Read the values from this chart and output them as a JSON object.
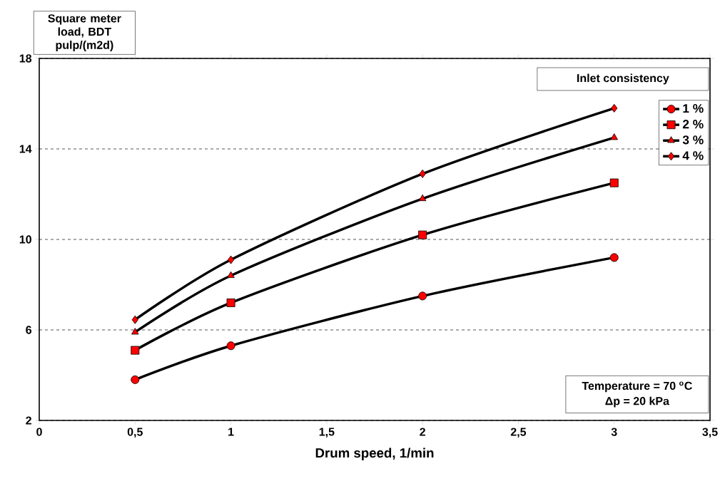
{
  "chart_data": {
    "type": "line",
    "xlabel": "Drum speed, 1/min",
    "ylabel": "Square meter load, BDT pulp/(m2d)",
    "legend_title": "Inlet consistency",
    "x": [
      0.5,
      1,
      2,
      3
    ],
    "series": [
      {
        "name": "1 %",
        "color": "#000000",
        "marker": "circle",
        "values": [
          3.8,
          5.3,
          7.5,
          9.2
        ]
      },
      {
        "name": "2 %",
        "color": "#000000",
        "marker": "square",
        "values": [
          5.1,
          7.2,
          10.2,
          12.5
        ]
      },
      {
        "name": "3 %",
        "color": "#000000",
        "marker": "triangle",
        "values": [
          5.9,
          8.4,
          11.8,
          14.5
        ]
      },
      {
        "name": "4 %",
        "color": "#000000",
        "marker": "diamond",
        "values": [
          6.45,
          9.1,
          12.9,
          15.8
        ]
      }
    ],
    "xlim": [
      0,
      3.5
    ],
    "ylim": [
      2,
      18
    ],
    "xticks": [
      0,
      {
        "value": 0.5,
        "label": "0,5"
      },
      1,
      {
        "value": 1.5,
        "label": "1,5"
      },
      2,
      {
        "value": 2.5,
        "label": "2,5"
      },
      3,
      {
        "value": 3.5,
        "label": "3,5"
      }
    ],
    "yticks": [
      2,
      6,
      10,
      14,
      18
    ],
    "annotations": [
      "Temperature = 70 $^{o}$C",
      "Δp = 20 kPa"
    ],
    "grid": "y",
    "legend": "top right",
    "line_style": "solid"
  }
}
